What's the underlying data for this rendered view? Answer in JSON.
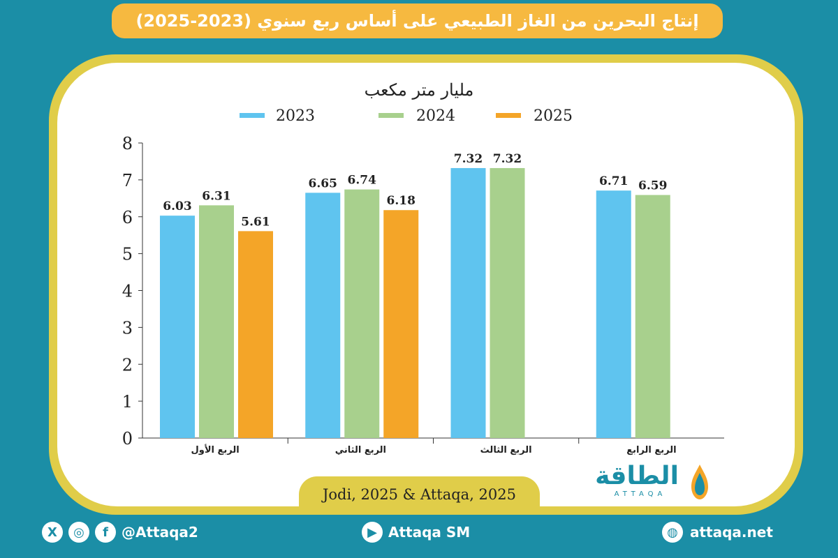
{
  "title": "إنتاج البحرين من الغاز الطبيعي على أساس ربع سنوي (2023-2025)",
  "source": "Jodi, 2025 & Attaqa, 2025",
  "logo": {
    "name": "الطاقة",
    "sub": "ATTAQA"
  },
  "footer": {
    "social_handle": "@Attaqa2",
    "youtube": "Attaqa SM",
    "website": "attaqa.net"
  },
  "colors": {
    "2023": "#5fc4ef",
    "2024": "#a8d08d",
    "2025": "#f4a528",
    "frame": "#e0cd49",
    "banner": "#f6b940",
    "background": "#1b8ea6"
  },
  "chart_data": {
    "type": "bar",
    "title": "مليار متر مكعب",
    "categories": [
      "الربع الأول",
      "الربع الثاني",
      "الربع الثالث",
      "الربع الرابع"
    ],
    "series": [
      {
        "name": "2023",
        "values": [
          6.03,
          6.65,
          7.32,
          6.71
        ]
      },
      {
        "name": "2024",
        "values": [
          6.31,
          6.74,
          7.32,
          6.59
        ]
      },
      {
        "name": "2025",
        "values": [
          5.61,
          6.18,
          null,
          null
        ]
      }
    ],
    "ylim": [
      0,
      8
    ],
    "yticks": [
      0,
      1,
      2,
      3,
      4,
      5,
      6,
      7,
      8
    ],
    "grid": false,
    "legend": "top-center",
    "data_labels": true
  }
}
